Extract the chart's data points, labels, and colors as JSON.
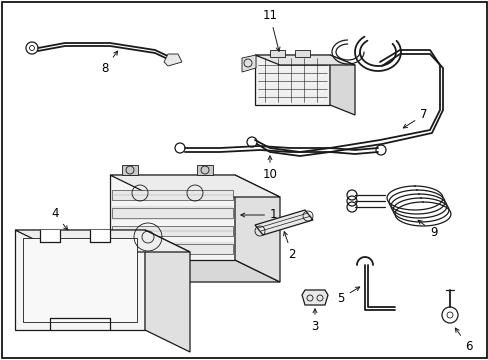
{
  "background_color": "#ffffff",
  "border_color": "#000000",
  "fig_width": 4.89,
  "fig_height": 3.6,
  "dpi": 100,
  "line_color": "#1a1a1a",
  "text_color": "#000000",
  "font_size": 8.5,
  "border_lw": 1.2,
  "lw_thick": 1.3,
  "lw_med": 0.9,
  "lw_thin": 0.6
}
